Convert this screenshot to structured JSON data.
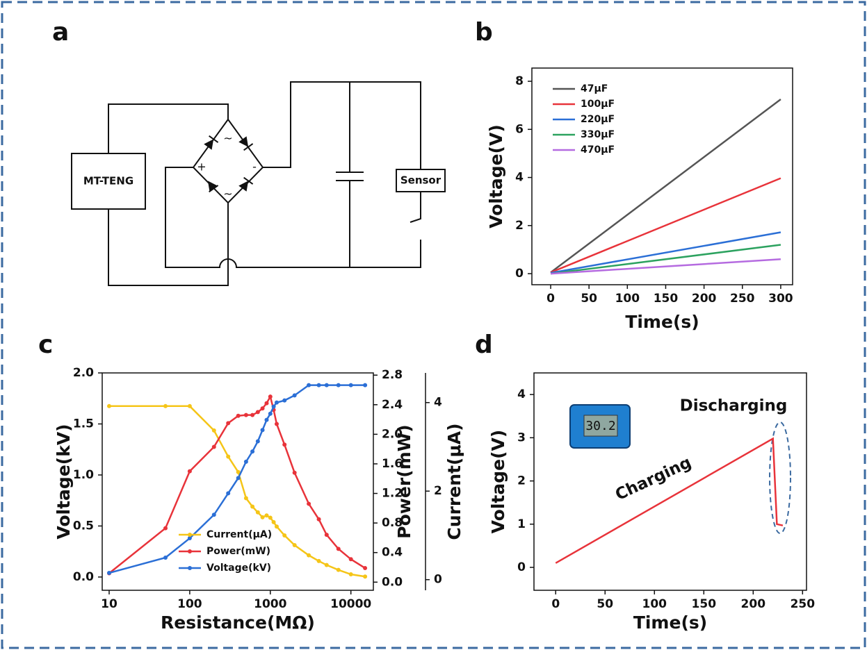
{
  "panels": [
    "a",
    "b",
    "c",
    "d"
  ],
  "diagram": {
    "source": "MT-TENG",
    "load": "Sensor",
    "bridge_marks": [
      "~",
      "+",
      "-",
      "~"
    ]
  },
  "chart_data": [
    {
      "type": "line",
      "xlabel": "Time(s)",
      "ylabel": "Voltage(V)",
      "x": [
        0,
        300
      ],
      "xlim": [
        -24.5,
        315.5
      ],
      "xticks": [
        0,
        50,
        100,
        150,
        200,
        250,
        300
      ],
      "ylim": [
        -0.46,
        8.55
      ],
      "yticks": [
        0,
        2,
        4,
        6,
        8
      ],
      "legend": "upper left",
      "series": [
        {
          "name": "47μF",
          "color": "#555555",
          "values": [
            0.05,
            7.25
          ]
        },
        {
          "name": "100μF",
          "color": "#e8333a",
          "values": [
            0.05,
            3.97
          ]
        },
        {
          "name": "220μF",
          "color": "#2b6fd6",
          "values": [
            0.03,
            1.72
          ]
        },
        {
          "name": "330μF",
          "color": "#2ca25f",
          "values": [
            0,
            1.2
          ]
        },
        {
          "name": "470μF",
          "color": "#b56be0",
          "values": [
            0,
            0.6
          ]
        }
      ]
    },
    {
      "type": "line",
      "xlabel": "Resistance(MΩ)",
      "ylabel": "Voltage(kV)",
      "y2label": "Power(mW)",
      "y3label": "Current(μA)",
      "x": [
        10,
        50,
        100,
        200,
        300,
        400,
        500,
        600,
        700,
        800,
        900,
        1000,
        1100,
        1200,
        1500,
        2000,
        3000,
        4000,
        5000,
        7000,
        10000,
        15000
      ],
      "xscale": "log",
      "xlim": [
        8.2,
        19000
      ],
      "xticks": [
        10,
        100,
        1000,
        10000
      ],
      "ylim": [
        -0.13,
        2.0
      ],
      "yticks": [
        {
          "value": 0,
          "label": "0.0"
        },
        0.5,
        {
          "value": 1,
          "label": "1.0"
        },
        1.5,
        {
          "value": 2,
          "label": "2.0"
        }
      ],
      "y2lim": [
        -0.11,
        2.83
      ],
      "y2ticks": [
        {
          "value": 0,
          "label": "0.0"
        },
        0.4,
        0.8,
        1.2,
        1.6,
        {
          "value": 2,
          "label": "2.0"
        },
        2.4,
        2.8
      ],
      "y3lim": [
        -0.24,
        4.67
      ],
      "y3ticks": [
        0,
        2,
        4
      ],
      "legend": "lower center",
      "markers": true,
      "series": [
        {
          "name": "Current(μA)",
          "color": "#f5c518",
          "axis": "y3",
          "values": [
            3.92,
            3.92,
            3.92,
            3.37,
            2.78,
            2.43,
            1.84,
            1.65,
            1.52,
            1.41,
            1.45,
            1.4,
            1.3,
            1.2,
            1.0,
            0.78,
            0.55,
            0.42,
            0.33,
            0.22,
            0.12,
            0.07
          ]
        },
        {
          "name": "Power(mW)",
          "color": "#e8333a",
          "axis": "y2",
          "values": [
            0.12,
            0.73,
            1.5,
            1.83,
            2.15,
            2.25,
            2.26,
            2.26,
            2.3,
            2.35,
            2.42,
            2.51,
            2.33,
            2.14,
            1.86,
            1.48,
            1.06,
            0.85,
            0.64,
            0.45,
            0.31,
            0.19
          ]
        },
        {
          "name": "Voltage(kV)",
          "color": "#2b6fd6",
          "values": [
            0.04,
            0.19,
            0.38,
            0.61,
            0.82,
            0.97,
            1.13,
            1.23,
            1.33,
            1.44,
            1.54,
            1.6,
            1.67,
            1.71,
            1.73,
            1.78,
            1.88,
            1.88,
            1.88,
            1.88,
            1.88,
            1.88
          ]
        }
      ]
    },
    {
      "type": "line",
      "xlabel": "Time(s)",
      "ylabel": "Voltage(V)",
      "x": [
        0,
        220,
        224,
        230
      ],
      "values": [
        0.1,
        2.98,
        1.0,
        0.97
      ],
      "color": "#e8333a",
      "xlim": [
        -22,
        254
      ],
      "xticks": [
        0,
        50,
        100,
        150,
        200,
        250
      ],
      "ylim": [
        -0.53,
        4.5
      ],
      "yticks": [
        0,
        1,
        2,
        3,
        4
      ],
      "annotations": [
        "Charging",
        "Discharging"
      ],
      "inset_display": "30.2"
    }
  ]
}
